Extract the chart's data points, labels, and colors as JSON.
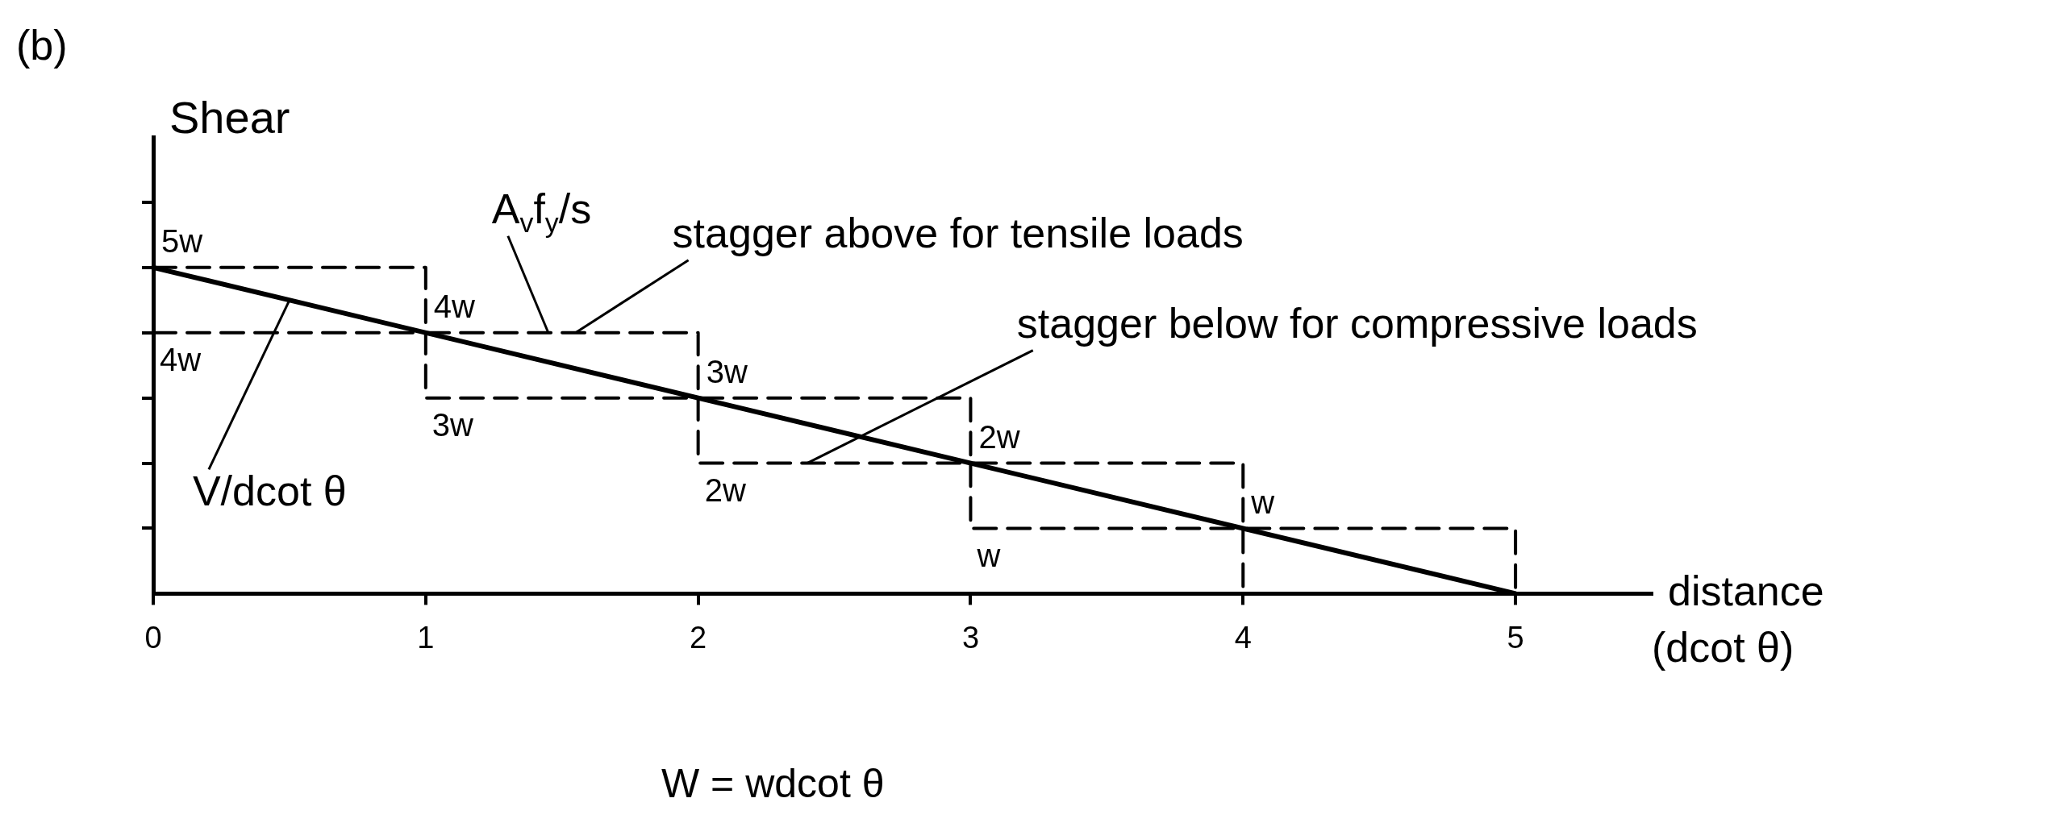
{
  "chart_data": {
    "type": "line",
    "xlabel": "distance (dcot θ)",
    "ylabel": "Shear",
    "xlim": [
      0,
      5.5
    ],
    "ylim": [
      0,
      7
    ],
    "xticks": [
      0,
      1,
      2,
      3,
      4,
      5
    ],
    "yticks": [
      {
        "value": 1,
        "label": null
      },
      {
        "value": 2,
        "label": null
      },
      {
        "value": 3,
        "label": null
      },
      {
        "value": 4,
        "label": null
      },
      {
        "value": 5,
        "label": null
      },
      {
        "value": 6,
        "label": null
      }
    ],
    "series": [
      {
        "type": "step",
        "color": "#000000",
        "line_style": "dashed",
        "x": [
          0,
          1,
          2,
          3,
          4,
          5
        ],
        "values": [
          5,
          4,
          3,
          2,
          1,
          0
        ],
        "value_labels": [
          "5w",
          "4w",
          "3w",
          "2w",
          "w",
          null
        ]
      },
      {
        "type": "step",
        "color": "#000000",
        "line_style": "dashed",
        "x": [
          0,
          1,
          2,
          3,
          4,
          5
        ],
        "values": [
          4,
          3,
          2,
          1,
          0,
          0
        ],
        "value_labels": [
          "4w",
          "3w",
          "2w",
          "w",
          null,
          null
        ]
      },
      {
        "type": "line",
        "color": "#000000",
        "line_style": "solid",
        "x": [
          0,
          5
        ],
        "values": [
          5,
          0
        ]
      }
    ],
    "annotations": [
      "(b)",
      {
        "text": "A$_{v}$f$_{y}$/s",
        "x": 1.45,
        "y": 4
      },
      {
        "text": "stagger above for tensile loads",
        "x": 1.55,
        "y": 4
      },
      {
        "text": "stagger below for compressive loads",
        "x": 2.4,
        "y": 2
      },
      {
        "text": "V/dcot θ",
        "x": 0.5,
        "y": 4.5
      },
      "W = wdcot θ"
    ],
    "legend": false,
    "grid": false,
    "marker": "none"
  }
}
